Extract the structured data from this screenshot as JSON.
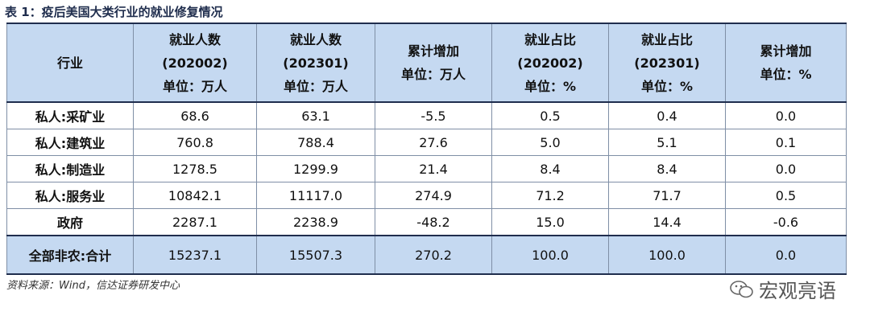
{
  "title": "表 1：疫后美国大类行业的就业修复情况",
  "table": {
    "headers": [
      [
        "行业"
      ],
      [
        "就业人数",
        "(202002)",
        "单位：万人"
      ],
      [
        "就业人数",
        "(202301)",
        "单位：万人"
      ],
      [
        "累计增加",
        "单位：万人"
      ],
      [
        "就业占比",
        "(202002)",
        "单位：%"
      ],
      [
        "就业占比",
        "(202301)",
        "单位：%"
      ],
      [
        "累计增加",
        "单位：%"
      ]
    ],
    "rows": [
      [
        "私人:采矿业",
        "68.6",
        "63.1",
        "-5.5",
        "0.5",
        "0.4",
        "0.0"
      ],
      [
        "私人:建筑业",
        "760.8",
        "788.4",
        "27.6",
        "5.0",
        "5.1",
        "0.1"
      ],
      [
        "私人:制造业",
        "1278.5",
        "1299.9",
        "21.4",
        "8.4",
        "8.4",
        "0.0"
      ],
      [
        "私人:服务业",
        "10842.1",
        "11117.0",
        "274.9",
        "71.2",
        "71.7",
        "0.5"
      ],
      [
        "政府",
        "2287.1",
        "2238.9",
        "-48.2",
        "15.0",
        "14.4",
        "-0.6"
      ],
      [
        "全部非农:合计",
        "15237.1",
        "15507.3",
        "270.2",
        "100.0",
        "100.0",
        "0.0"
      ]
    ]
  },
  "source": "资料来源：Wind，信达证券研发中心",
  "watermark": "宏观亮语"
}
